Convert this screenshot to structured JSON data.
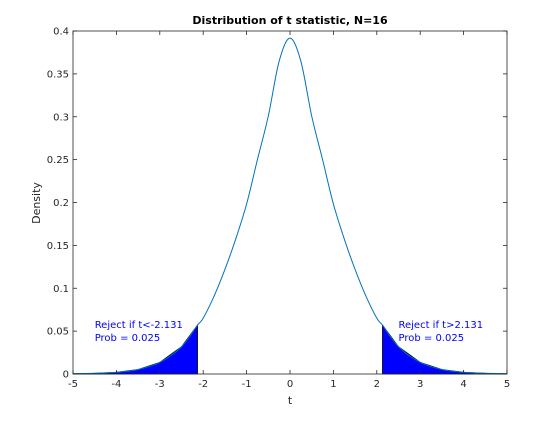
{
  "chart_data": {
    "type": "area",
    "title": "Distribution of t statistic, N=16",
    "xlabel": "t",
    "ylabel": "Density",
    "xlim": [
      -5,
      5
    ],
    "ylim": [
      0,
      0.4
    ],
    "grid": false,
    "x_ticks": [
      "-5",
      "-4",
      "-3",
      "-2",
      "-1",
      "0",
      "1",
      "2",
      "3",
      "4",
      "5"
    ],
    "y_ticks": [
      "0",
      "0.05",
      "0.1",
      "0.15",
      "0.2",
      "0.25",
      "0.3",
      "0.35",
      "0.4"
    ],
    "series": [
      {
        "x": [
          -5.0,
          -4.5,
          -4.0,
          -3.5,
          -3.0,
          -2.5,
          -2.131,
          -2.0,
          -1.75,
          -1.5,
          -1.25,
          -1.0,
          -0.75,
          -0.5,
          -0.25,
          0.0,
          0.25,
          0.5,
          0.75,
          1.0,
          1.25,
          1.5,
          1.75,
          2.0,
          2.131,
          2.5,
          3.0,
          3.5,
          4.0,
          4.5,
          5.0
        ],
        "y": [
          0.0003,
          0.0008,
          0.002,
          0.0053,
          0.0136,
          0.0318,
          0.057,
          0.0651,
          0.0907,
          0.1219,
          0.1575,
          0.1982,
          0.2501,
          0.3008,
          0.3648,
          0.3917,
          0.3648,
          0.3008,
          0.2501,
          0.1982,
          0.1575,
          0.1219,
          0.0907,
          0.0651,
          0.057,
          0.0318,
          0.0136,
          0.0053,
          0.002,
          0.0008,
          0.0003
        ],
        "color": "#0072BD"
      }
    ],
    "shaded_regions": [
      {
        "x_from": -5,
        "x_to": -2.131,
        "color": "#0000FF"
      },
      {
        "x_from": 2.131,
        "x_to": 5,
        "color": "#0000FF"
      }
    ],
    "annotations": [
      {
        "line1": "Reject if t<-2.131",
        "line2": "Prob = 0.025",
        "x": -4.5,
        "y1": 0.057,
        "y2": 0.042,
        "color": "#0000FF"
      },
      {
        "line1": "Reject if t>2.131",
        "line2": "Prob = 0.025",
        "x": 2.5,
        "y1": 0.057,
        "y2": 0.042,
        "color": "#0000FF"
      }
    ]
  }
}
